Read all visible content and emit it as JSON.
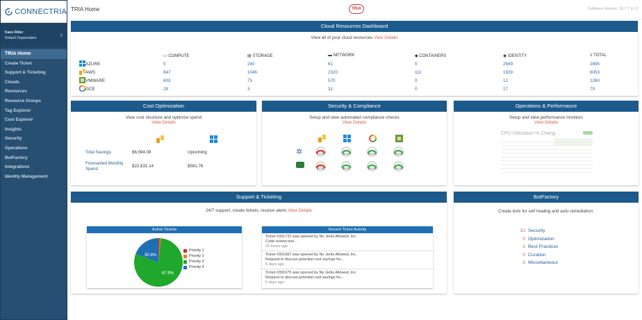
{
  "app": {
    "name": "CONNECTRIA"
  },
  "sidebar": {
    "user_name": "Kane Rider",
    "organization": "Default Organization",
    "items": [
      "TRIA Home",
      "Create Ticket",
      "Support & Ticketing",
      "Clouds",
      "Resources",
      "Resource Groups",
      "Tag Explorer",
      "Cost Explorer",
      "Insights",
      "Security",
      "Operations",
      "BotFactory",
      "Integrations",
      "Identity Management"
    ]
  },
  "topbar": {
    "title": "TRIA Home",
    "brand": "TRiA",
    "version": "Software Version: 18.7.7 v1.0"
  },
  "cloud": {
    "title": "Cloud Resources Dashboard",
    "subtitle": "View all of your cloud resources",
    "link": "View Details",
    "columns": [
      "COMPUTE",
      "STORAGE",
      "NETWORK",
      "CONTAINERS",
      "IDENTITY",
      "TOTAL"
    ],
    "rows": [
      {
        "name": "AZURE",
        "values": [
          "5",
          "240",
          "61",
          "0",
          "2589",
          "2895"
        ]
      },
      {
        "name": "AWS",
        "values": [
          "647",
          "1046",
          "2320",
          "111",
          "1929",
          "6053"
        ]
      },
      {
        "name": "VMWARE",
        "values": [
          "603",
          "75",
          "570",
          "0",
          "12",
          "1260"
        ]
      },
      {
        "name": "GCE",
        "values": [
          "28",
          "3",
          "31",
          "0",
          "17",
          "79"
        ]
      }
    ]
  },
  "cost": {
    "title": "Cost Optimization",
    "subtitle": "View cost structure and optimize spend",
    "link": "View Details",
    "total_label": "Total Savings",
    "total_aws": "$6,594.08",
    "total_azure": "Upcoming",
    "forecast_label": "Forecasted Monthly Spend",
    "forecast_aws": "$22,831.14",
    "forecast_azure": "$591.76"
  },
  "security": {
    "title": "Security & Compliance",
    "subtitle": "Setup and view automated compliance checks",
    "link": "View Details",
    "row1": [
      "67.3%",
      "86.3%",
      "100.0%",
      "100.0%"
    ],
    "row2": [
      "61.3%",
      "86.3%",
      "100.0%",
      "100.0%"
    ]
  },
  "ops": {
    "title": "Operations & Performance",
    "subtitle": "Setup and view performance monitors",
    "link": "View Details",
    "chart_title": "CPU Utilization % Chang..."
  },
  "support": {
    "title": "Support & Ticketing",
    "subtitle": "24/7 support, create tickets, receive alerts",
    "link": "View Details",
    "active_title": "Active Tickets",
    "recent_title": "Recent Ticket Activity",
    "pie_labels": [
      "30.9%",
      "67.9%"
    ],
    "legend": [
      "Priority 1",
      "Priority 2",
      "Priority 3",
      "Priority 4"
    ],
    "tickets": [
      {
        "line1": "Ticket #391732 was opened by No Jerks Allowed, Inc.",
        "line2": "Code review test...",
        "ago": "20 hours ago"
      },
      {
        "line1": "Ticket #391687 was opened by No Jerks Allowed, Inc.",
        "line2": "Request to discuss potential cost savings for...",
        "ago": "5 days ago"
      },
      {
        "line1": "Ticket #391675 was opened by No Jerks Allowed, Inc.",
        "line2": "Request to discuss potential cost savings for...",
        "ago": "6 days ago"
      }
    ]
  },
  "botfactory": {
    "title": "BotFactory",
    "subtitle": "Create bots for self healing and auto remediation.",
    "items": [
      {
        "count": "31",
        "label": "Security"
      },
      {
        "count": "0",
        "label": "Optimization"
      },
      {
        "count": "1",
        "label": "Best Practices"
      },
      {
        "count": "0",
        "label": "Curation"
      },
      {
        "count": "0",
        "label": "Miscellaneous"
      }
    ]
  },
  "colors": {
    "header": "#1c5a8c",
    "sidebar": "#264f72",
    "link": "#d95b43",
    "p1": "#d62b2b",
    "p2": "#f07b1d",
    "p3": "#1fa82c",
    "p4": "#1f6fb4"
  }
}
